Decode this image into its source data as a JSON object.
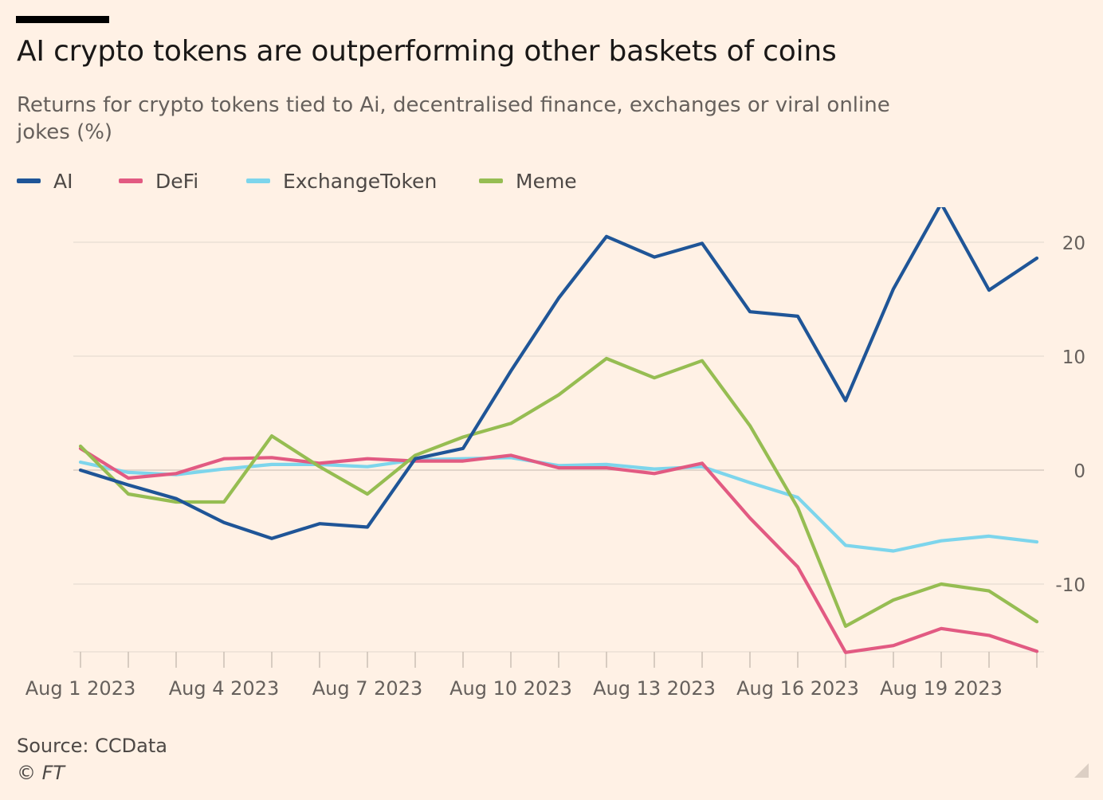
{
  "header": {
    "title": "AI crypto tokens are outperforming other baskets of coins",
    "subtitle": "Returns for crypto tokens tied to Ai, decentralised finance, exchanges or viral online jokes (%)"
  },
  "footer": {
    "source": "Source: CCData",
    "copyright": "© FT"
  },
  "colors": {
    "background": "#fff1e5",
    "AI": "#1f5597",
    "DeFi": "#e25a82",
    "ExchangeToken": "#7dd5ec",
    "Meme": "#96bd52",
    "grid": "#e7dcd2",
    "axis": "#66605c"
  },
  "chart_data": {
    "type": "line",
    "title": "AI crypto tokens are outperforming other baskets of coins",
    "subtitle": "Returns for crypto tokens tied to Ai, decentralised finance, exchanges or viral online jokes (%)",
    "xlabel": "",
    "ylabel": "",
    "x": [
      "Aug 1 2023",
      "Aug 2 2023",
      "Aug 3 2023",
      "Aug 4 2023",
      "Aug 5 2023",
      "Aug 6 2023",
      "Aug 7 2023",
      "Aug 8 2023",
      "Aug 9 2023",
      "Aug 10 2023",
      "Aug 11 2023",
      "Aug 12 2023",
      "Aug 13 2023",
      "Aug 14 2023",
      "Aug 15 2023",
      "Aug 16 2023",
      "Aug 17 2023",
      "Aug 18 2023",
      "Aug 19 2023",
      "Aug 20 2023",
      "Aug 21 2023"
    ],
    "x_tick_labels": [
      "Aug 1 2023",
      "Aug 4 2023",
      "Aug 7 2023",
      "Aug 10 2023",
      "Aug 13 2023",
      "Aug 16 2023",
      "Aug 19 2023"
    ],
    "y_ticks": [
      20,
      10,
      0,
      -10
    ],
    "y_tick_labels": [
      "20",
      "10",
      "0",
      "-10"
    ],
    "ylim": [
      -16,
      24
    ],
    "grid": true,
    "y_axis_side": "right",
    "legend_position": "top-left",
    "series": [
      {
        "name": "AI",
        "values": [
          0.0,
          -1.3,
          -2.5,
          -4.6,
          -6.0,
          -4.7,
          -5.0,
          1.0,
          1.9,
          8.7,
          15.1,
          20.5,
          18.7,
          19.9,
          13.9,
          13.5,
          6.1,
          15.9,
          23.4,
          15.8,
          18.6
        ]
      },
      {
        "name": "DeFi",
        "values": [
          1.9,
          -0.7,
          -0.3,
          1.0,
          1.1,
          0.6,
          1.0,
          0.8,
          0.8,
          1.3,
          0.2,
          0.2,
          -0.3,
          0.6,
          -4.2,
          -8.5,
          -16.0,
          -15.4,
          -13.9,
          -14.5,
          -15.9
        ]
      },
      {
        "name": "ExchangeToken",
        "values": [
          0.7,
          -0.2,
          -0.4,
          0.1,
          0.5,
          0.5,
          0.3,
          0.9,
          1.0,
          1.1,
          0.4,
          0.5,
          0.1,
          0.3,
          -1.1,
          -2.4,
          -6.6,
          -7.1,
          -6.2,
          -5.8,
          -6.3
        ]
      },
      {
        "name": "Meme",
        "values": [
          2.1,
          -2.1,
          -2.8,
          -2.8,
          3.0,
          0.3,
          -2.1,
          1.3,
          2.9,
          4.1,
          6.6,
          9.8,
          8.1,
          9.6,
          3.9,
          -3.3,
          -13.7,
          -11.4,
          -10.0,
          -10.6,
          -13.3
        ]
      }
    ]
  }
}
